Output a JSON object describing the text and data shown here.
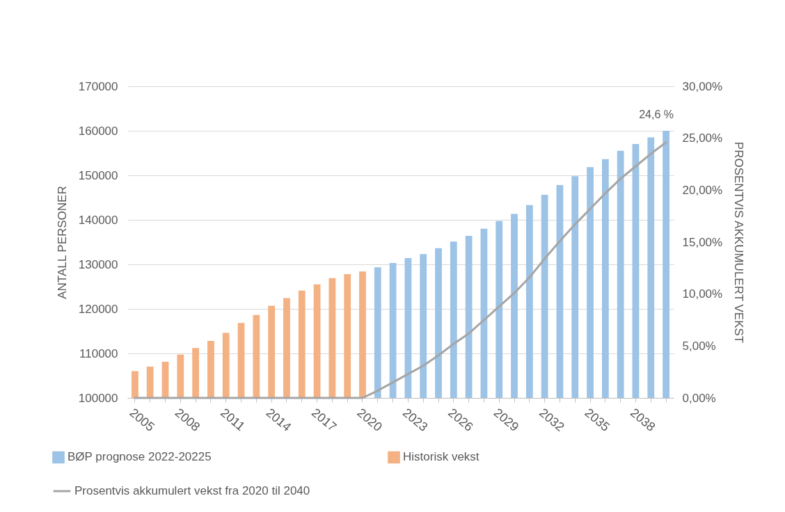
{
  "chart_data": {
    "type": "bar",
    "xlabel": null,
    "ylabel": "ANTALL PERSONER",
    "y2label": "PROSENTVIS AKKUMULERT VEKST",
    "categories": [
      "2005",
      null,
      null,
      "2008",
      null,
      null,
      "2011",
      null,
      null,
      "2014",
      null,
      null,
      "2017",
      null,
      null,
      "2020",
      null,
      null,
      "2023",
      null,
      null,
      "2026",
      null,
      null,
      "2029",
      null,
      null,
      "2032",
      null,
      null,
      "2035",
      null,
      null,
      "2038",
      null,
      null
    ],
    "series": [
      {
        "name": "BØP prognose 2022-20225",
        "color": "#9dc3e6",
        "values": [
          null,
          null,
          null,
          null,
          null,
          null,
          null,
          null,
          null,
          null,
          null,
          null,
          null,
          null,
          null,
          null,
          129200,
          130200,
          131300,
          132200,
          133500,
          135000,
          136300,
          137900,
          139600,
          141200,
          143200,
          145500,
          147700,
          149700,
          151700,
          153500,
          155400,
          156900,
          158400,
          159900
        ]
      },
      {
        "name": "Historisk vekst",
        "color": "#f4b183",
        "values": [
          105900,
          106900,
          108000,
          109600,
          111100,
          112700,
          114500,
          116700,
          118500,
          120600,
          122300,
          124000,
          125400,
          126800,
          127700,
          128300,
          null,
          null,
          null,
          null,
          null,
          null,
          null,
          null,
          null,
          null,
          null,
          null,
          null,
          null,
          null,
          null,
          null,
          null,
          null,
          null
        ]
      },
      {
        "name": "Prosentvis akkumulert vekst fra 2020 til 2040",
        "type": "line",
        "axis": "y2",
        "color": "#a5a5a5",
        "values": [
          0,
          0,
          0,
          0,
          0,
          0,
          0,
          0,
          0,
          0,
          0,
          0,
          0,
          0,
          0,
          0,
          0.7,
          1.5,
          2.3,
          3.1,
          4.1,
          5.2,
          6.2,
          7.5,
          8.8,
          10.1,
          11.6,
          13.4,
          15.1,
          16.7,
          18.2,
          19.7,
          21.1,
          22.3,
          23.5,
          24.6
        ],
        "value_labels": [
          null,
          null,
          null,
          null,
          null,
          null,
          null,
          null,
          null,
          null,
          null,
          null,
          null,
          null,
          null,
          null,
          null,
          null,
          null,
          null,
          null,
          null,
          null,
          null,
          null,
          null,
          null,
          null,
          null,
          null,
          null,
          null,
          null,
          null,
          null,
          "24,6 %"
        ]
      }
    ],
    "ylim": [
      100000,
      170000
    ],
    "yticks": [
      100000,
      110000,
      120000,
      130000,
      140000,
      150000,
      160000,
      170000
    ],
    "y2lim": [
      0,
      30
    ],
    "y2ticks": [
      {
        "value": 0,
        "label": "0,00%"
      },
      {
        "value": 5,
        "label": "5,00%"
      },
      {
        "value": 10,
        "label": "10,00%"
      },
      {
        "value": 15,
        "label": "15,00%"
      },
      {
        "value": 20,
        "label": "20,00%"
      },
      {
        "value": 25,
        "label": "25,00%"
      },
      {
        "value": 30,
        "label": "30,00%"
      }
    ],
    "grid": "y",
    "legend": "bottom",
    "marker": "none",
    "line_style": "solid"
  }
}
